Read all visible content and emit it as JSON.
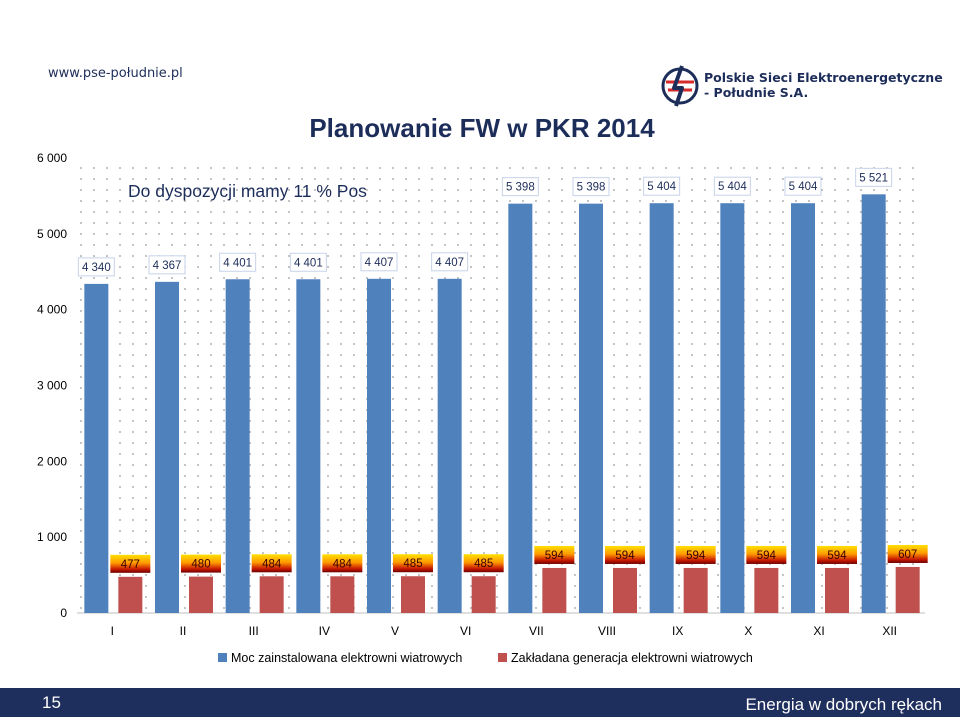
{
  "header": {
    "url": "www.pse-południe.pl",
    "company_line1": "Polskie Sieci Elektroenergetyczne",
    "company_line2": "- Południe S.A."
  },
  "footer": {
    "page_number": "15",
    "tagline": "Energia w dobrych rękach"
  },
  "colors": {
    "installed": "#4f81bd",
    "generation": "#c0504d",
    "footer_band": "#1f2f5d",
    "logo_red": "#d62b2b",
    "logo_blue": "#1d2d5a"
  },
  "chart_data": {
    "type": "bar",
    "title": "Planowanie FW w PKR 2014",
    "annotation": "Do dyspozycji mamy 11 % Pos",
    "categories": [
      "I",
      "II",
      "III",
      "IV",
      "V",
      "VI",
      "VII",
      "VIII",
      "IX",
      "X",
      "XI",
      "XII"
    ],
    "series": [
      {
        "name": "Moc zainstalowana elektrowni wiatrowych",
        "values": [
          4340,
          4367,
          4401,
          4401,
          4407,
          4407,
          5398,
          5398,
          5404,
          5404,
          5404,
          5521
        ],
        "labels": [
          "4 340",
          "4 367",
          "4 401",
          "4 401",
          "4 407",
          "4 407",
          "5 398",
          "5 398",
          "5 404",
          "5 404",
          "5 404",
          "5 521"
        ]
      },
      {
        "name": "Zakładana generacja elektrowni wiatrowych",
        "values": [
          477,
          480,
          484,
          484,
          485,
          485,
          594,
          594,
          594,
          594,
          594,
          607
        ],
        "labels": [
          "477",
          "480",
          "484",
          "484",
          "485",
          "485",
          "594",
          "594",
          "594",
          "594",
          "594",
          "607"
        ]
      }
    ],
    "yticks": [
      "0",
      "1 000",
      "2 000",
      "3 000",
      "4 000",
      "5 000",
      "6 000"
    ],
    "ylim": [
      0,
      6000
    ],
    "grid": "dotted",
    "legend_position": "bottom"
  }
}
